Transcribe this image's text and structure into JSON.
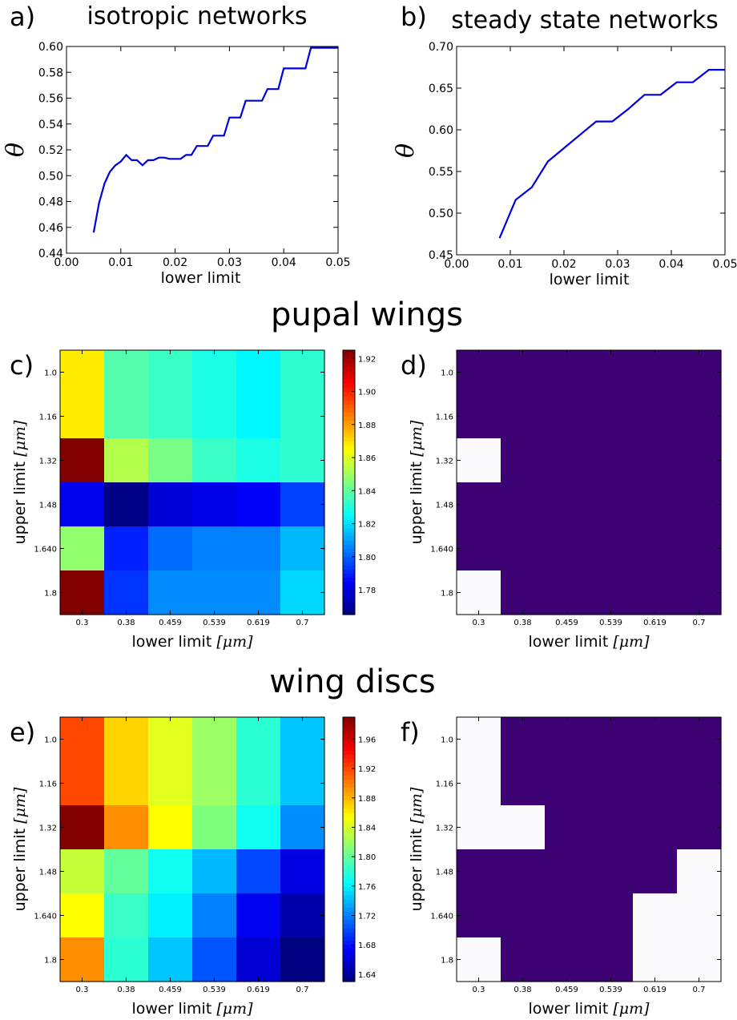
{
  "figure": {
    "section_pupal": "pupal wings",
    "section_discs": "wing discs"
  },
  "chart_data": [
    {
      "id": "a",
      "type": "line",
      "panel_label": "a)",
      "title": "isotropic networks",
      "xlabel": "lower limit",
      "ylabel": "θ",
      "xlim": [
        0.0,
        0.05
      ],
      "ylim": [
        0.44,
        0.6
      ],
      "xticks": [
        "0.00",
        "0.01",
        "0.02",
        "0.03",
        "0.04",
        "0.05"
      ],
      "yticks": [
        "0.44",
        "0.46",
        "0.48",
        "0.50",
        "0.52",
        "0.54",
        "0.56",
        "0.58",
        "0.60"
      ],
      "line_color": "#0000dd",
      "x": [
        0.005,
        0.006,
        0.007,
        0.008,
        0.009,
        0.01,
        0.011,
        0.012,
        0.013,
        0.014,
        0.015,
        0.016,
        0.017,
        0.018,
        0.019,
        0.02,
        0.021,
        0.022,
        0.023,
        0.024,
        0.025,
        0.026,
        0.027,
        0.028,
        0.029,
        0.03,
        0.031,
        0.032,
        0.033,
        0.034,
        0.035,
        0.036,
        0.037,
        0.038,
        0.039,
        0.04,
        0.041,
        0.042,
        0.043,
        0.044,
        0.045,
        0.046,
        0.047,
        0.048,
        0.049,
        0.05
      ],
      "y": [
        0.456,
        0.479,
        0.494,
        0.503,
        0.508,
        0.511,
        0.516,
        0.512,
        0.512,
        0.508,
        0.512,
        0.512,
        0.514,
        0.514,
        0.513,
        0.513,
        0.513,
        0.516,
        0.516,
        0.523,
        0.523,
        0.523,
        0.531,
        0.531,
        0.531,
        0.545,
        0.545,
        0.545,
        0.558,
        0.558,
        0.558,
        0.558,
        0.567,
        0.567,
        0.567,
        0.583,
        0.583,
        0.583,
        0.583,
        0.583,
        0.599,
        0.599,
        0.599,
        0.599,
        0.599,
        0.599
      ]
    },
    {
      "id": "b",
      "type": "line",
      "panel_label": "b)",
      "title": "steady state networks",
      "xlabel": "lower limit",
      "ylabel": "θ",
      "xlim": [
        0.0,
        0.05
      ],
      "ylim": [
        0.45,
        0.7
      ],
      "xticks": [
        "0.00",
        "0.01",
        "0.02",
        "0.03",
        "0.04",
        "0.05"
      ],
      "yticks": [
        "0.45",
        "0.50",
        "0.55",
        "0.60",
        "0.65",
        "0.70"
      ],
      "line_color": "#0000dd",
      "x": [
        0.008,
        0.011,
        0.014,
        0.017,
        0.02,
        0.023,
        0.026,
        0.029,
        0.032,
        0.035,
        0.038,
        0.041,
        0.044,
        0.047,
        0.05
      ],
      "y": [
        0.47,
        0.516,
        0.531,
        0.562,
        0.578,
        0.594,
        0.61,
        0.61,
        0.625,
        0.642,
        0.642,
        0.657,
        0.657,
        0.672,
        0.672
      ]
    },
    {
      "id": "c",
      "type": "heatmap",
      "panel_label": "c)",
      "xlabel": "lower limit",
      "xlabel_unit": "[μm]",
      "ylabel": "upper limit",
      "ylabel_unit": "[μm]",
      "xcategories": [
        "0.3",
        "0.38",
        "0.459",
        "0.539",
        "0.619",
        "0.7"
      ],
      "ycategories": [
        "1.0",
        "1.16",
        "1.32",
        "1.48",
        "1.640",
        "1.8"
      ],
      "colormap": "jet",
      "vmin": 1.765,
      "vmax": 1.925,
      "colorbar_ticks": [
        "1.78",
        "1.80",
        "1.82",
        "1.84",
        "1.86",
        "1.88",
        "1.90",
        "1.92"
      ],
      "colorbar_tick_values": [
        1.78,
        1.8,
        1.82,
        1.84,
        1.86,
        1.88,
        1.9,
        1.92
      ],
      "values": [
        [
          1.868,
          1.838,
          1.834,
          1.829,
          1.824,
          1.832
        ],
        [
          1.868,
          1.838,
          1.834,
          1.829,
          1.824,
          1.832
        ],
        [
          1.925,
          1.853,
          1.844,
          1.834,
          1.829,
          1.832
        ],
        [
          1.782,
          1.766,
          1.779,
          1.781,
          1.784,
          1.795
        ],
        [
          1.848,
          1.79,
          1.802,
          1.805,
          1.805,
          1.814
        ],
        [
          1.925,
          1.793,
          1.807,
          1.807,
          1.807,
          1.819
        ]
      ]
    },
    {
      "id": "d",
      "type": "heatmap",
      "panel_label": "d)",
      "xlabel": "lower limit",
      "xlabel_unit": "[μm]",
      "ylabel": "upper limit",
      "ylabel_unit": "[μm]",
      "xcategories": [
        "0.3",
        "0.38",
        "0.459",
        "0.539",
        "0.619",
        "0.7"
      ],
      "ycategories": [
        "1.0",
        "1.16",
        "1.32",
        "1.48",
        "1.640",
        "1.8"
      ],
      "colors": {
        "0": "#3c0274",
        "1": "#fbfbfd"
      },
      "values": [
        [
          0,
          0,
          0,
          0,
          0,
          0
        ],
        [
          0,
          0,
          0,
          0,
          0,
          0
        ],
        [
          1,
          0,
          0,
          0,
          0,
          0
        ],
        [
          0,
          0,
          0,
          0,
          0,
          0
        ],
        [
          0,
          0,
          0,
          0,
          0,
          0
        ],
        [
          1,
          0,
          0,
          0,
          0,
          0
        ]
      ]
    },
    {
      "id": "e",
      "type": "heatmap",
      "panel_label": "e)",
      "xlabel": "lower limit",
      "xlabel_unit": "[μm]",
      "ylabel": "upper limit",
      "ylabel_unit": "[μm]",
      "xcategories": [
        "0.3",
        "0.38",
        "0.459",
        "0.539",
        "0.619",
        "0.7"
      ],
      "ycategories": [
        "1.0",
        "1.16",
        "1.32",
        "1.48",
        "1.640",
        "1.8"
      ],
      "colormap": "jet",
      "vmin": 1.63,
      "vmax": 1.99,
      "colorbar_ticks": [
        "1.64",
        "1.68",
        "1.72",
        "1.76",
        "1.80",
        "1.84",
        "1.88",
        "1.92",
        "1.96"
      ],
      "colorbar_tick_values": [
        1.64,
        1.68,
        1.72,
        1.76,
        1.8,
        1.84,
        1.88,
        1.92,
        1.96
      ],
      "values": [
        [
          1.92,
          1.87,
          1.845,
          1.82,
          1.78,
          1.745
        ],
        [
          1.92,
          1.87,
          1.845,
          1.82,
          1.78,
          1.745
        ],
        [
          1.99,
          1.895,
          1.855,
          1.81,
          1.77,
          1.725
        ],
        [
          1.835,
          1.8,
          1.77,
          1.74,
          1.7,
          1.665
        ],
        [
          1.855,
          1.785,
          1.76,
          1.72,
          1.67,
          1.645
        ],
        [
          1.895,
          1.78,
          1.745,
          1.705,
          1.66,
          1.63
        ]
      ]
    },
    {
      "id": "f",
      "type": "heatmap",
      "panel_label": "f)",
      "xlabel": "lower limit",
      "xlabel_unit": "[μm]",
      "ylabel": "upper limit",
      "ylabel_unit": "[μm]",
      "xcategories": [
        "0.3",
        "0.38",
        "0.459",
        "0.539",
        "0.619",
        "0.7"
      ],
      "ycategories": [
        "1.0",
        "1.16",
        "1.32",
        "1.48",
        "1.640",
        "1.8"
      ],
      "colors": {
        "0": "#3c0274",
        "1": "#fbfbfd"
      },
      "values": [
        [
          1,
          0,
          0,
          0,
          0,
          0
        ],
        [
          1,
          0,
          0,
          0,
          0,
          0
        ],
        [
          1,
          1,
          0,
          0,
          0,
          0
        ],
        [
          0,
          0,
          0,
          0,
          0,
          1
        ],
        [
          0,
          0,
          0,
          0,
          1,
          1
        ],
        [
          1,
          0,
          0,
          0,
          1,
          1
        ]
      ]
    }
  ]
}
